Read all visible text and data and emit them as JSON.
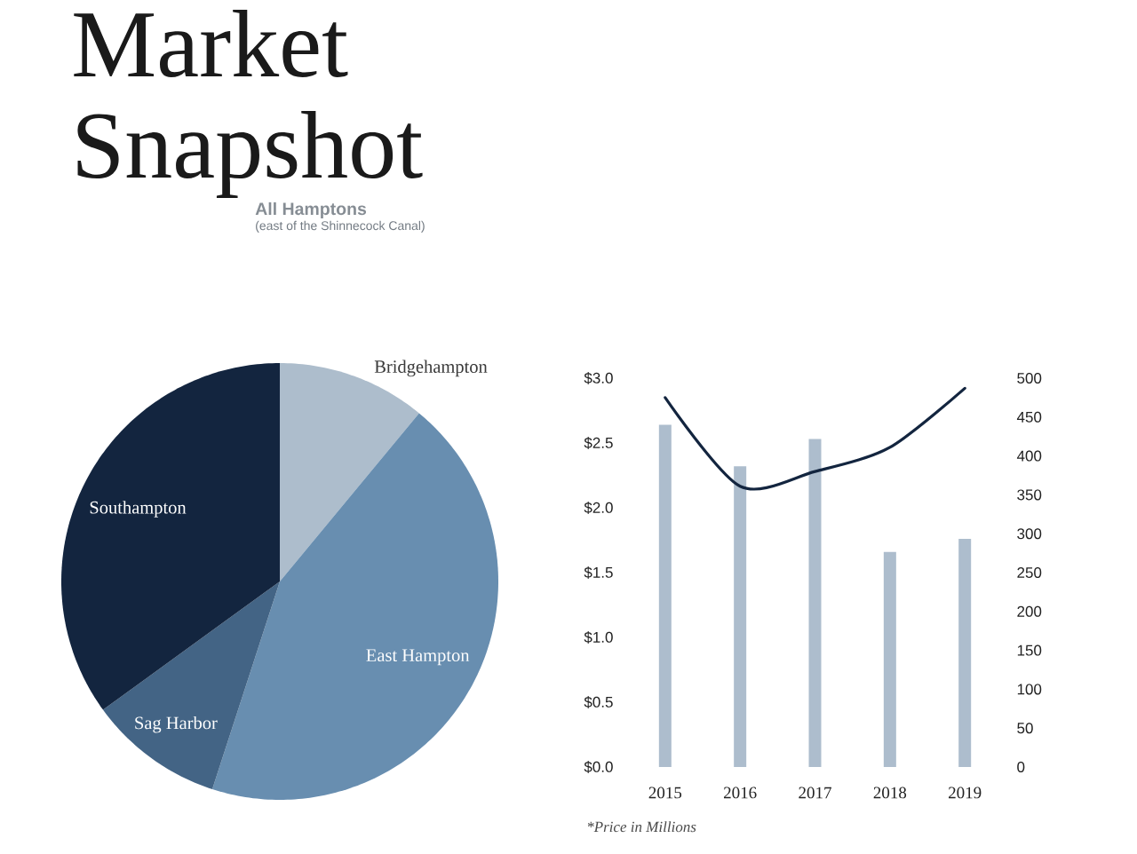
{
  "chart_data": [
    {
      "type": "pie",
      "title": "Market Snapshot",
      "subtitle": "All Hamptons",
      "annotations": [
        "(east of the Shinnecock Canal)"
      ],
      "categories": [
        "Bridgehampton",
        "East Hampton",
        "Sag Harbor",
        "Southampton"
      ],
      "values": [
        11,
        44,
        10,
        35
      ],
      "colors": [
        "#adbdcc",
        "#688eb0",
        "#436485",
        "#13253f"
      ]
    },
    {
      "type": "bar",
      "categories": [
        "2015",
        "2016",
        "2017",
        "2018",
        "2019"
      ],
      "series": [
        {
          "type": "bar",
          "color": "#adbdcd",
          "values": [
            2.64,
            2.32,
            2.53,
            1.66,
            1.76
          ]
        },
        {
          "type": "line",
          "axis": "y2",
          "color": "#13253f",
          "values": [
            475,
            361,
            380,
            411,
            487
          ]
        }
      ],
      "ylim": [
        0,
        3.0
      ],
      "yticks": [
        {
          "value": 0,
          "label": "$0.0"
        },
        {
          "value": 0.5,
          "label": "$0.5"
        },
        {
          "value": 1,
          "label": "$1.0"
        },
        {
          "value": 1.5,
          "label": "$1.5"
        },
        {
          "value": 2,
          "label": "$2.0"
        },
        {
          "value": 2.5,
          "label": "$2.5"
        },
        {
          "value": 3,
          "label": "$3.0"
        }
      ],
      "y2lim": [
        0,
        500
      ],
      "y2ticks": [
        0,
        50,
        100,
        150,
        200,
        250,
        300,
        350,
        400,
        450,
        500
      ],
      "annotations": [
        "*Price in Millions"
      ]
    }
  ]
}
